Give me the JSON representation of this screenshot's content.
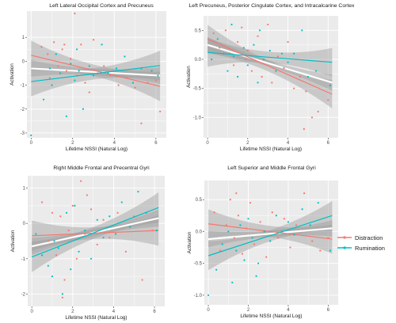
{
  "legend": {
    "position": "right",
    "entries": [
      {
        "name": "Distraction",
        "color": "#F8766D"
      },
      {
        "name": "Rumination",
        "color": "#00BFC4"
      }
    ]
  },
  "colors": {
    "panel_background": "#EBEBEB",
    "gridline": "#FFFFFF",
    "confidence_band": "#9E9E9E",
    "distraction": "#F8766D",
    "rumination": "#00BFC4",
    "overall_fit": "#FFFFFF"
  },
  "chart_data": [
    {
      "type": "scatter",
      "title": "Left Lateral Occipital Cortex and Precuneus",
      "xlabel": "Lifetime NSSI (Natural Log)",
      "ylabel": "Activation",
      "xlim": [
        -0.2,
        6.5
      ],
      "ylim": [
        -3.2,
        2.1
      ],
      "xticks": [
        0,
        2,
        4,
        6
      ],
      "yticks": [
        1,
        0,
        -1,
        -2,
        -3
      ],
      "grid": true,
      "series": [
        {
          "name": "Distraction",
          "fit": [
            [
              0,
              0.25
            ],
            [
              6.2,
              -1.05
            ]
          ],
          "points": [
            [
              0.5,
              0.6
            ],
            [
              0.8,
              0.3
            ],
            [
              1.1,
              0.8
            ],
            [
              1.3,
              -0.2
            ],
            [
              1.5,
              0.5
            ],
            [
              1.7,
              -0.4
            ],
            [
              1.9,
              0.1
            ],
            [
              2.1,
              2.0
            ],
            [
              2.2,
              -0.6
            ],
            [
              2.4,
              0.7
            ],
            [
              2.6,
              -0.9
            ],
            [
              2.8,
              -1.3
            ],
            [
              3.0,
              0.9
            ],
            [
              3.2,
              -0.5
            ],
            [
              3.5,
              -0.2
            ],
            [
              3.8,
              -0.6
            ],
            [
              4.2,
              -1.0
            ],
            [
              4.6,
              -0.7
            ],
            [
              5.0,
              -1.1
            ],
            [
              5.3,
              -2.6
            ],
            [
              5.6,
              -0.9
            ],
            [
              6.0,
              -0.8
            ],
            [
              6.2,
              -2.1
            ],
            [
              0.9,
              -0.7
            ],
            [
              1.6,
              0.7
            ]
          ]
        },
        {
          "name": "Rumination",
          "fit": [
            [
              0,
              -0.85
            ],
            [
              6.2,
              -0.18
            ]
          ],
          "points": [
            [
              0,
              -3.1
            ],
            [
              0.6,
              -1.6
            ],
            [
              0.9,
              -0.3
            ],
            [
              1.2,
              0.3
            ],
            [
              1.4,
              -0.5
            ],
            [
              1.7,
              -2.3
            ],
            [
              1.9,
              -0.1
            ],
            [
              2.1,
              -0.8
            ],
            [
              2.3,
              -0.4
            ],
            [
              2.5,
              -2.0
            ],
            [
              2.8,
              -0.2
            ],
            [
              3.0,
              -0.6
            ],
            [
              3.4,
              0.7
            ],
            [
              3.7,
              -0.5
            ],
            [
              4.1,
              -0.3
            ],
            [
              4.5,
              0.2
            ],
            [
              4.9,
              -0.9
            ],
            [
              5.3,
              -0.3
            ],
            [
              5.8,
              -0.4
            ],
            [
              6.1,
              -0.6
            ],
            [
              1.0,
              -1.0
            ],
            [
              2.2,
              0.5
            ]
          ]
        }
      ],
      "overall_fit": [
        [
          0,
          -0.3
        ],
        [
          6.2,
          -0.6
        ]
      ]
    },
    {
      "type": "scatter",
      "title": "Left Precuneus, Posterior Cingulate Cortex, and Intracalcarine Cortex",
      "xlabel": "Lifetime NSSI (Natural Log)",
      "ylabel": "Activation",
      "xlim": [
        -0.2,
        6.5
      ],
      "ylim": [
        -1.35,
        0.75
      ],
      "xticks": [
        0,
        2,
        4,
        6
      ],
      "yticks": [
        0.5,
        0.0,
        -0.5,
        -1.0
      ],
      "grid": true,
      "series": [
        {
          "name": "Distraction",
          "fit": [
            [
              0,
              0.35
            ],
            [
              6.2,
              -0.6
            ]
          ],
          "points": [
            [
              0.3,
              0.45
            ],
            [
              0.6,
              0.2
            ],
            [
              0.9,
              0.5
            ],
            [
              1.1,
              0.1
            ],
            [
              1.3,
              -0.1
            ],
            [
              1.5,
              0.3
            ],
            [
              1.7,
              0.55
            ],
            [
              1.9,
              0.0
            ],
            [
              2.0,
              0.15
            ],
            [
              2.2,
              -0.2
            ],
            [
              2.5,
              0.4
            ],
            [
              2.7,
              -0.3
            ],
            [
              3.0,
              0.6
            ],
            [
              3.2,
              -0.4
            ],
            [
              3.5,
              0.05
            ],
            [
              3.8,
              -0.15
            ],
            [
              4.0,
              0.3
            ],
            [
              4.3,
              -0.5
            ],
            [
              4.6,
              -0.3
            ],
            [
              4.9,
              -0.55
            ],
            [
              5.2,
              -1.0
            ],
            [
              5.5,
              -0.9
            ],
            [
              6.0,
              -0.7
            ],
            [
              4.8,
              -1.2
            ]
          ]
        },
        {
          "name": "Rumination",
          "fit": [
            [
              0,
              0.12
            ],
            [
              6.2,
              -0.05
            ]
          ],
          "points": [
            [
              0.2,
              0.0
            ],
            [
              0.5,
              0.35
            ],
            [
              0.8,
              0.1
            ],
            [
              1.0,
              -0.2
            ],
            [
              1.3,
              0.05
            ],
            [
              1.5,
              -0.3
            ],
            [
              1.8,
              0.2
            ],
            [
              2.0,
              -0.1
            ],
            [
              2.3,
              0.25
            ],
            [
              2.5,
              -0.4
            ],
            [
              2.8,
              0.0
            ],
            [
              3.1,
              0.15
            ],
            [
              3.4,
              -0.2
            ],
            [
              3.7,
              0.1
            ],
            [
              4.0,
              -0.05
            ],
            [
              4.3,
              0.1
            ],
            [
              4.7,
              0.5
            ],
            [
              5.0,
              -0.3
            ],
            [
              5.4,
              -0.2
            ],
            [
              6.1,
              -0.45
            ],
            [
              1.2,
              0.6
            ],
            [
              2.6,
              0.5
            ]
          ]
        }
      ],
      "overall_fit": [
        [
          0,
          0.25
        ],
        [
          6.2,
          -0.4
        ]
      ]
    },
    {
      "type": "scatter",
      "title": "Right Middle Frontal and Precentral Gyri",
      "xlabel": "Lifetime NSSI (Natural Log)",
      "ylabel": "Activation",
      "xlim": [
        -0.2,
        6.5
      ],
      "ylim": [
        -2.35,
        1.35
      ],
      "xticks": [
        0,
        2,
        4,
        6
      ],
      "yticks": [
        1,
        0,
        -1,
        -2
      ],
      "grid": true,
      "series": [
        {
          "name": "Distraction",
          "fit": [
            [
              0,
              -0.35
            ],
            [
              6.2,
              -0.2
            ]
          ],
          "points": [
            [
              0.5,
              0.6
            ],
            [
              0.8,
              -0.5
            ],
            [
              1.0,
              0.3
            ],
            [
              1.2,
              -0.9
            ],
            [
              1.4,
              0.2
            ],
            [
              1.6,
              -1.6
            ],
            [
              1.8,
              -0.2
            ],
            [
              2.0,
              0.5
            ],
            [
              2.2,
              -1.0
            ],
            [
              2.4,
              1.2
            ],
            [
              2.6,
              -0.3
            ],
            [
              2.9,
              0.4
            ],
            [
              3.2,
              -0.6
            ],
            [
              3.5,
              0.1
            ],
            [
              3.8,
              -0.4
            ],
            [
              4.2,
              0.3
            ],
            [
              4.6,
              -0.8
            ],
            [
              5.0,
              0.2
            ],
            [
              5.4,
              -1.6
            ],
            [
              5.9,
              -0.2
            ],
            [
              1.5,
              -2.1
            ],
            [
              2.7,
              0.8
            ]
          ]
        },
        {
          "name": "Rumination",
          "fit": [
            [
              0,
              -0.95
            ],
            [
              6.2,
              0.45
            ]
          ],
          "points": [
            [
              0.2,
              -0.3
            ],
            [
              0.5,
              -0.9
            ],
            [
              0.8,
              -1.2
            ],
            [
              1.1,
              -0.5
            ],
            [
              1.3,
              -0.7
            ],
            [
              1.5,
              -2.0
            ],
            [
              1.7,
              0.3
            ],
            [
              1.9,
              -1.3
            ],
            [
              2.1,
              0.5
            ],
            [
              2.3,
              -0.8
            ],
            [
              2.6,
              -0.2
            ],
            [
              2.9,
              -1.0
            ],
            [
              3.2,
              0.1
            ],
            [
              3.5,
              -0.4
            ],
            [
              3.8,
              0.2
            ],
            [
              4.1,
              -0.3
            ],
            [
              4.4,
              0.6
            ],
            [
              4.8,
              -0.1
            ],
            [
              5.2,
              0.9
            ],
            [
              5.6,
              0.3
            ],
            [
              6.1,
              -0.2
            ],
            [
              1.0,
              -1.5
            ]
          ]
        }
      ],
      "overall_fit": [
        [
          0,
          -0.65
        ],
        [
          6.2,
          0.15
        ]
      ]
    },
    {
      "type": "scatter",
      "title": "Left Superior and Middle Frontal Gyri",
      "xlabel": "Lifetime NSSI (Natural Log)",
      "ylabel": "Activation",
      "xlim": [
        -0.2,
        6.5
      ],
      "ylim": [
        -1.15,
        0.8
      ],
      "xticks": [
        0,
        2,
        4,
        6
      ],
      "yticks": [
        0.5,
        0.0,
        -0.5,
        -1.0
      ],
      "grid": true,
      "series": [
        {
          "name": "Distraction",
          "fit": [
            [
              0,
              0.12
            ],
            [
              6.2,
              -0.12
            ]
          ],
          "points": [
            [
              0.3,
              0.3
            ],
            [
              0.6,
              -0.3
            ],
            [
              0.9,
              0.1
            ],
            [
              1.1,
              0.5
            ],
            [
              1.3,
              -0.1
            ],
            [
              1.5,
              0.25
            ],
            [
              1.7,
              -0.35
            ],
            [
              1.9,
              0.05
            ],
            [
              2.1,
              0.45
            ],
            [
              2.3,
              -0.2
            ],
            [
              2.6,
              0.15
            ],
            [
              2.9,
              -0.4
            ],
            [
              3.2,
              0.3
            ],
            [
              3.5,
              -0.1
            ],
            [
              3.8,
              0.2
            ],
            [
              4.1,
              -0.25
            ],
            [
              4.4,
              0.1
            ],
            [
              4.8,
              0.6
            ],
            [
              5.2,
              -0.15
            ],
            [
              5.6,
              -0.3
            ],
            [
              6.0,
              -0.1
            ],
            [
              1.4,
              0.6
            ]
          ]
        },
        {
          "name": "Rumination",
          "fit": [
            [
              0,
              -0.38
            ],
            [
              6.2,
              0.25
            ]
          ],
          "points": [
            [
              0.0,
              -1.0
            ],
            [
              0.4,
              -0.6
            ],
            [
              0.7,
              -0.2
            ],
            [
              1.0,
              0.0
            ],
            [
              1.2,
              -0.8
            ],
            [
              1.4,
              -0.3
            ],
            [
              1.6,
              0.1
            ],
            [
              1.8,
              -0.45
            ],
            [
              2.0,
              0.2
            ],
            [
              2.2,
              -0.1
            ],
            [
              2.5,
              -0.5
            ],
            [
              2.8,
              0.0
            ],
            [
              3.1,
              -0.15
            ],
            [
              3.4,
              0.25
            ],
            [
              3.7,
              0.0
            ],
            [
              4.0,
              0.15
            ],
            [
              4.3,
              -0.05
            ],
            [
              4.7,
              0.35
            ],
            [
              5.1,
              0.1
            ],
            [
              5.5,
              0.45
            ],
            [
              6.1,
              -0.3
            ],
            [
              2.4,
              -0.7
            ]
          ]
        }
      ],
      "overall_fit": [
        [
          0,
          -0.12
        ],
        [
          6.2,
          0.05
        ]
      ]
    }
  ]
}
